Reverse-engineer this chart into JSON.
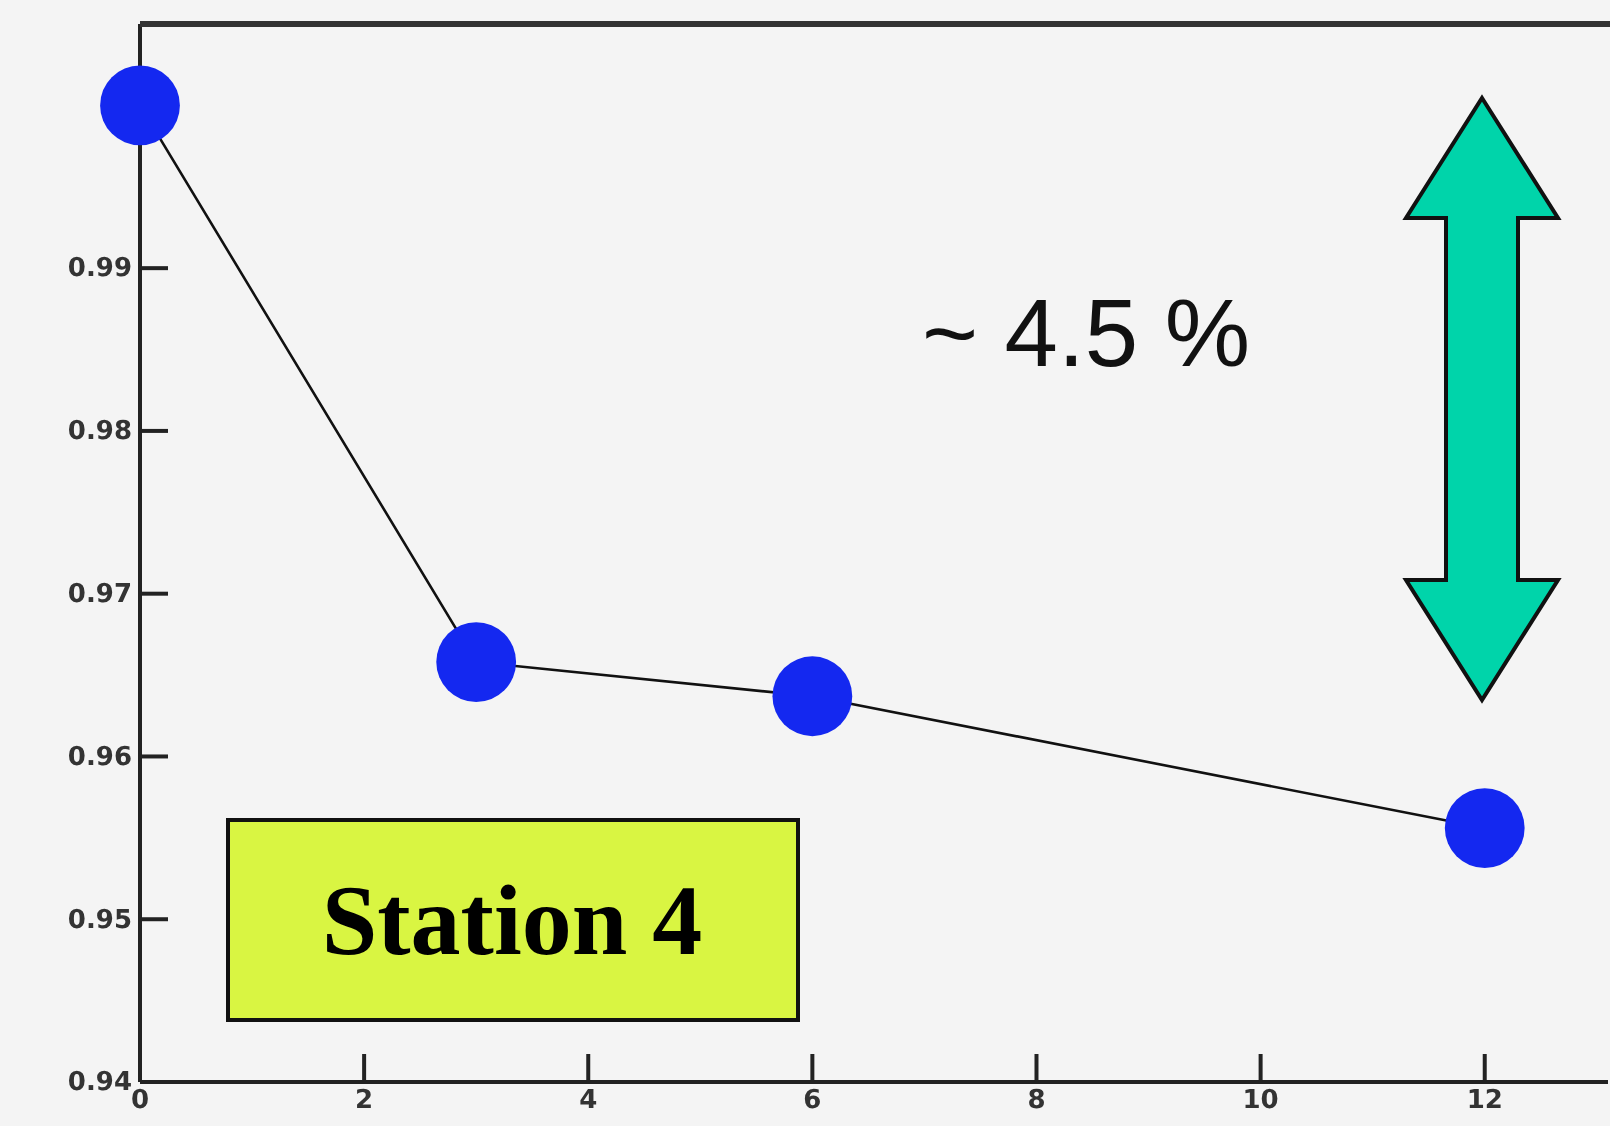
{
  "chart_data": {
    "type": "line",
    "x": [
      0,
      3,
      6,
      12
    ],
    "series": [
      {
        "color": "#1428f0",
        "values": [
          1.0,
          0.9658,
          0.9637,
          0.9556
        ]
      }
    ],
    "xlim": [
      0,
      13.1
    ],
    "xticks": [
      0,
      2,
      4,
      6,
      8,
      10,
      12
    ],
    "ylim": [
      0.94,
      1.005
    ],
    "yticks": [
      0.94,
      0.95,
      0.96,
      0.97,
      0.98,
      0.99
    ],
    "marker": "circle",
    "line_style": "solid",
    "grid": false,
    "legend": false,
    "annotations": [
      "~ 4.5 %",
      "Station 4"
    ]
  }
}
